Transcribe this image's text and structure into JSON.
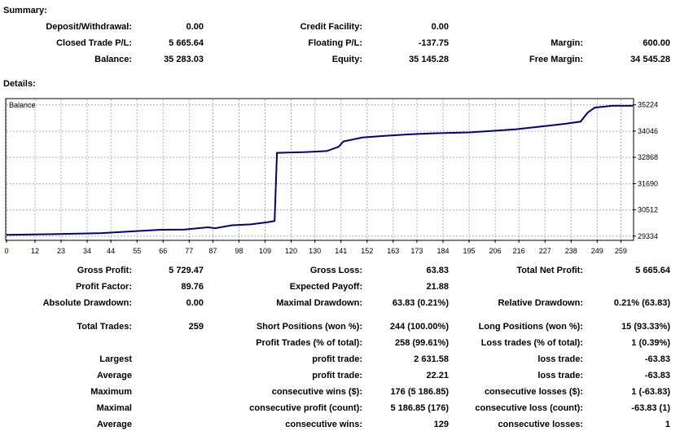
{
  "summary": {
    "title": "Summary:",
    "rows": [
      [
        [
          "Deposit/Withdrawal:",
          "0.00"
        ],
        [
          "Credit Facility:",
          "0.00"
        ],
        [
          "",
          ""
        ]
      ],
      [
        [
          "Closed Trade P/L:",
          "5 665.64"
        ],
        [
          "Floating P/L:",
          "-137.75"
        ],
        [
          "Margin:",
          "600.00"
        ]
      ],
      [
        [
          "Balance:",
          "35 283.03"
        ],
        [
          "Equity:",
          "35 145.28"
        ],
        [
          "Free Margin:",
          "34 545.28"
        ]
      ]
    ]
  },
  "details": {
    "title": "Details:"
  },
  "chart_data": {
    "type": "line",
    "title": "Balance",
    "series": [
      {
        "name": "Balance",
        "color": "#00007f",
        "points": [
          [
            0,
            29390
          ],
          [
            20,
            29420
          ],
          [
            40,
            29470
          ],
          [
            55,
            29560
          ],
          [
            65,
            29620
          ],
          [
            75,
            29630
          ],
          [
            85,
            29730
          ],
          [
            88,
            29690
          ],
          [
            95,
            29820
          ],
          [
            103,
            29860
          ],
          [
            110,
            29960
          ],
          [
            113,
            30010
          ],
          [
            114,
            33070
          ],
          [
            125,
            33100
          ],
          [
            135,
            33150
          ],
          [
            140,
            33340
          ],
          [
            142,
            33580
          ],
          [
            150,
            33760
          ],
          [
            160,
            33840
          ],
          [
            170,
            33900
          ],
          [
            180,
            33950
          ],
          [
            195,
            33990
          ],
          [
            205,
            34060
          ],
          [
            215,
            34130
          ],
          [
            225,
            34250
          ],
          [
            235,
            34370
          ],
          [
            242,
            34470
          ],
          [
            245,
            34880
          ],
          [
            248,
            35100
          ],
          [
            255,
            35180
          ],
          [
            264,
            35190
          ]
        ]
      }
    ],
    "x_ticks": [
      "0",
      "12",
      "23",
      "34",
      "44",
      "55",
      "66",
      "77",
      "87",
      "98",
      "109",
      "120",
      "130",
      "141",
      "152",
      "163",
      "173",
      "184",
      "195",
      "206",
      "216",
      "227",
      "238",
      "249",
      "259"
    ],
    "y_ticks": [
      "35224",
      "34046",
      "32868",
      "31690",
      "30512",
      "29334"
    ],
    "xlim": [
      0,
      264
    ],
    "ylim": [
      29180,
      35470
    ],
    "grid": true
  },
  "stats": [
    [
      [
        "Gross Profit:",
        "5 729.47"
      ],
      [
        "Gross Loss:",
        "63.83"
      ],
      [
        "Total Net Profit:",
        "5 665.64"
      ]
    ],
    [
      [
        "Profit Factor:",
        "89.76"
      ],
      [
        "Expected Payoff:",
        "21.88"
      ],
      [
        "",
        ""
      ]
    ],
    [
      [
        "Absolute Drawdown:",
        "0.00"
      ],
      [
        "Maximal Drawdown:",
        "63.83 (0.21%)"
      ],
      [
        "Relative Drawdown:",
        "0.21% (63.83)"
      ]
    ],
    [
      [
        "Total Trades:",
        "259"
      ],
      [
        "Short Positions (won %):",
        "244 (100.00%)"
      ],
      [
        "Long Positions (won %):",
        "15 (93.33%)"
      ]
    ],
    [
      [
        "",
        ""
      ],
      [
        "Profit Trades (% of total):",
        "258 (99.61%)"
      ],
      [
        "Loss trades (% of total):",
        "1 (0.39%)"
      ]
    ],
    [
      [
        "Largest",
        ""
      ],
      [
        "profit trade:",
        "2 631.58"
      ],
      [
        "loss trade:",
        "-63.83"
      ]
    ],
    [
      [
        "Average",
        ""
      ],
      [
        "profit trade:",
        "22.21"
      ],
      [
        "loss trade:",
        "-63.83"
      ]
    ],
    [
      [
        "Maximum",
        ""
      ],
      [
        "consecutive wins ($):",
        "176 (5 186.85)"
      ],
      [
        "consecutive losses ($):",
        "1 (-63.83)"
      ]
    ],
    [
      [
        "Maximal",
        ""
      ],
      [
        "consecutive profit (count):",
        "5 186.85 (176)"
      ],
      [
        "consecutive loss (count):",
        "-63.83 (1)"
      ]
    ],
    [
      [
        "Average",
        ""
      ],
      [
        "consecutive wins:",
        "129"
      ],
      [
        "consecutive losses:",
        "1"
      ]
    ]
  ]
}
